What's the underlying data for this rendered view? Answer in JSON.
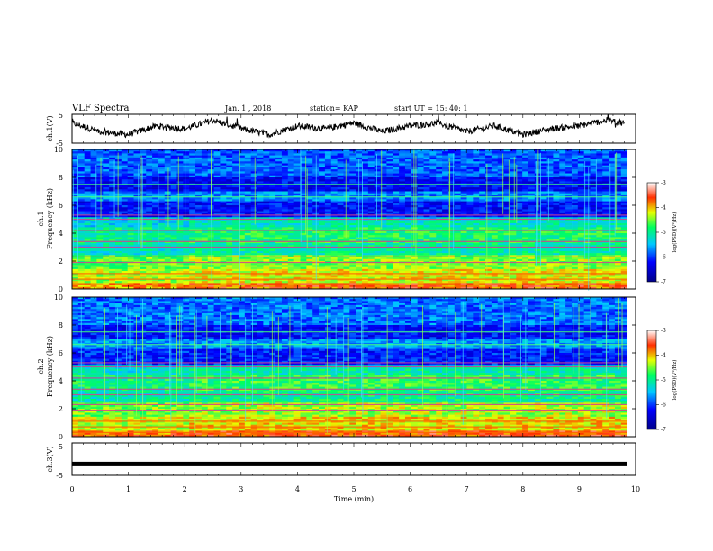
{
  "header": {
    "title": "VLF Spectra",
    "date": "Jan. 1 , 2018",
    "station": "station= KAP",
    "start": "start UT = 15: 40: 1"
  },
  "chart_data": [
    {
      "type": "line",
      "panel": "ch1-waveform",
      "ylabel": "ch.1(V)",
      "ylim": [
        -5,
        5
      ],
      "yticks": [
        "5",
        "-5"
      ],
      "xlim": [
        0,
        10
      ],
      "description_points": {
        "x": [
          0,
          0.5,
          1,
          1.5,
          2,
          2.5,
          3,
          3.5,
          4,
          4.5,
          5,
          5.5,
          6,
          6.5,
          7,
          7.5,
          8,
          8.5,
          9,
          9.5,
          9.8
        ],
        "y": [
          2,
          -1,
          -2,
          1,
          0,
          3,
          0,
          -2,
          1,
          0,
          2,
          -1,
          1,
          2,
          -1,
          1,
          -2,
          0,
          1,
          3,
          2
        ]
      }
    },
    {
      "type": "heatmap",
      "panel": "ch1-spectrogram",
      "ylabel_channel": "ch.1",
      "ylabel": "Frequency (kHz)",
      "ylim": [
        0,
        10
      ],
      "yticks": [
        "0",
        "2",
        "4",
        "6",
        "8",
        "10"
      ],
      "xlim": [
        0,
        10
      ],
      "data_xmax": 9.85,
      "colorbar": {
        "range": [
          -7,
          -3
        ],
        "ticks": [
          "-3",
          "-4",
          "-5",
          "-6",
          "-7"
        ],
        "label": "log(PSD)(V²/Hz)"
      }
    },
    {
      "type": "heatmap",
      "panel": "ch2-spectrogram",
      "ylabel_channel": "ch.2",
      "ylabel": "Frequency (kHz)",
      "ylim": [
        0,
        10
      ],
      "yticks": [
        "0",
        "2",
        "4",
        "6",
        "8",
        "10"
      ],
      "xlim": [
        0,
        10
      ],
      "data_xmax": 9.85,
      "colorbar": {
        "range": [
          -7,
          -3
        ],
        "ticks": [
          "-3",
          "-4",
          "-5",
          "-6",
          "-7"
        ],
        "label": "log(PSD)(V²/Hz)"
      }
    },
    {
      "type": "line",
      "panel": "ch3-waveform",
      "ylabel": "ch.3(V)",
      "ylim": [
        -5,
        5
      ],
      "yticks": [
        "5",
        "-5"
      ],
      "xlim": [
        0,
        10
      ],
      "constant_value": -1.5,
      "data_xmax": 9.85
    }
  ],
  "xaxis": {
    "label": "Time (min)",
    "ticks": [
      "0",
      "1",
      "2",
      "3",
      "4",
      "5",
      "6",
      "7",
      "8",
      "9",
      "10"
    ]
  }
}
